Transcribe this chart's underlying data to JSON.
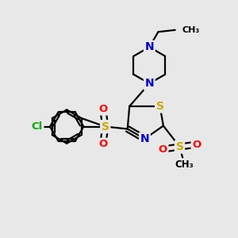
{
  "bg_color": "#e8e8e8",
  "atom_colors": {
    "C": "#000000",
    "N": "#0000cc",
    "S": "#ccaa00",
    "O": "#ff0000",
    "Cl": "#00aa00"
  },
  "bond_color": "#000000",
  "figsize": [
    3.0,
    3.0
  ],
  "dpi": 100
}
